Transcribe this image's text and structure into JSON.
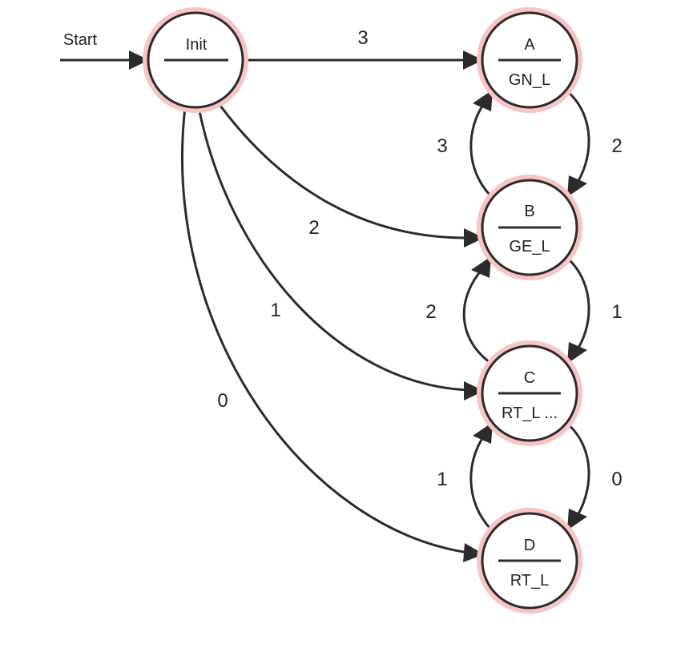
{
  "start_label": "Start",
  "nodes": {
    "init": {
      "name": "Init",
      "output": ""
    },
    "a": {
      "name": "A",
      "output": "GN_L"
    },
    "b": {
      "name": "B",
      "output": "GE_L"
    },
    "c": {
      "name": "C",
      "output": "RT_L ..."
    },
    "d": {
      "name": "D",
      "output": "RT_L"
    }
  },
  "edges": {
    "init_a": "3",
    "init_b": "2",
    "init_c": "1",
    "init_d": "0",
    "a_b": "2",
    "b_a": "3",
    "b_c": "1",
    "c_b": "2",
    "c_d": "0",
    "d_c": "1"
  },
  "colors": {
    "stroke": "#2b2b2b",
    "halo": "#f8c4c4",
    "fill": "#ffffff"
  }
}
